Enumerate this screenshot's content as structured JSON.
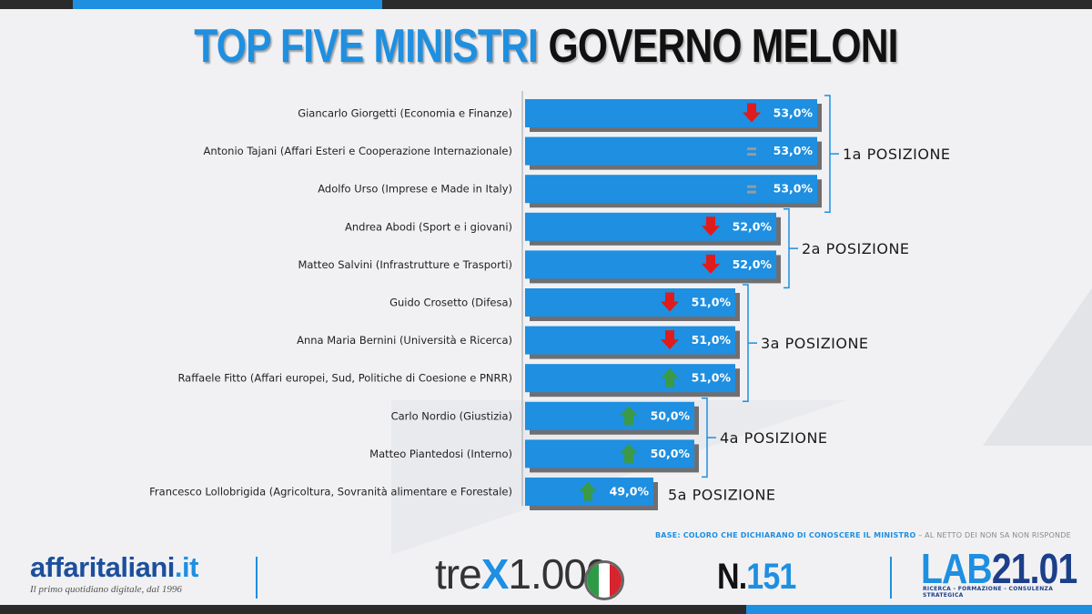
{
  "title": {
    "part1": "TOP FIVE MINISTRI",
    "part2": "GOVERNO MELONI"
  },
  "colors": {
    "bar": "#1e8fe1",
    "down": "#e01b1b",
    "up": "#3a9a48",
    "equal": "#9a9a9a",
    "bracket": "#1e8fe1"
  },
  "chart_data": {
    "type": "bar",
    "orientation": "horizontal",
    "title": "TOP FIVE MINISTRI GOVERNO MELONI",
    "categories": [
      "Giancarlo Giorgetti (Economia e Finanze)",
      "Antonio Tajani (Affari Esteri e Cooperazione Internazionale)",
      "Adolfo Urso (Imprese e Made in Italy)",
      "Andrea Abodi (Sport e i giovani)",
      "Matteo Salvini (Infrastrutture e Trasporti)",
      "Guido Crosetto (Difesa)",
      "Anna Maria Bernini (Università e Ricerca)",
      "Raffaele Fitto (Affari europei, Sud, Politiche di Coesione e PNRR)",
      "Carlo Nordio (Giustizia)",
      "Matteo Piantedosi (Interno)",
      "Francesco Lollobrigida (Agricoltura, Sovranità alimentare e Forestale)"
    ],
    "values": [
      53.0,
      53.0,
      53.0,
      52.0,
      52.0,
      51.0,
      51.0,
      51.0,
      50.0,
      50.0,
      49.0
    ],
    "value_labels": [
      "53,0%",
      "53,0%",
      "53,0%",
      "52,0%",
      "52,0%",
      "51,0%",
      "51,0%",
      "51,0%",
      "50,0%",
      "50,0%",
      "49,0%"
    ],
    "trends": [
      "down",
      "equal",
      "equal",
      "down",
      "down",
      "down",
      "down",
      "up",
      "up",
      "up",
      "up"
    ],
    "groups": [
      {
        "label": "1a POSIZIONE",
        "from": 0,
        "to": 2
      },
      {
        "label": "2a POSIZIONE",
        "from": 3,
        "to": 4
      },
      {
        "label": "3a POSIZIONE",
        "from": 5,
        "to": 7
      },
      {
        "label": "4a POSIZIONE",
        "from": 8,
        "to": 9
      },
      {
        "label": "5a POSIZIONE",
        "from": 10,
        "to": 10
      }
    ]
  },
  "base_note": {
    "highlight": "BASE: COLORO CHE DICHIARANO DI CONOSCERE IL MINISTRO",
    "rest": " – AL NETTO DEI NON SA NON RISPONDE"
  },
  "footer": {
    "affaritaliani_name": "affaritaliani",
    "affaritaliani_tld": ".it",
    "affaritaliani_tagline": "Il primo quotidiano digitale, dal 1996",
    "trex_pre": "tre",
    "trex_x": "X",
    "trex_post": "1.000",
    "number_prefix": "N.",
    "number_value": "151",
    "lab_word": "LAB",
    "lab_number": "21.01",
    "lab_tagline": "RICERCA - FORMAZIONE - CONSULENZA STRATEGICA"
  }
}
